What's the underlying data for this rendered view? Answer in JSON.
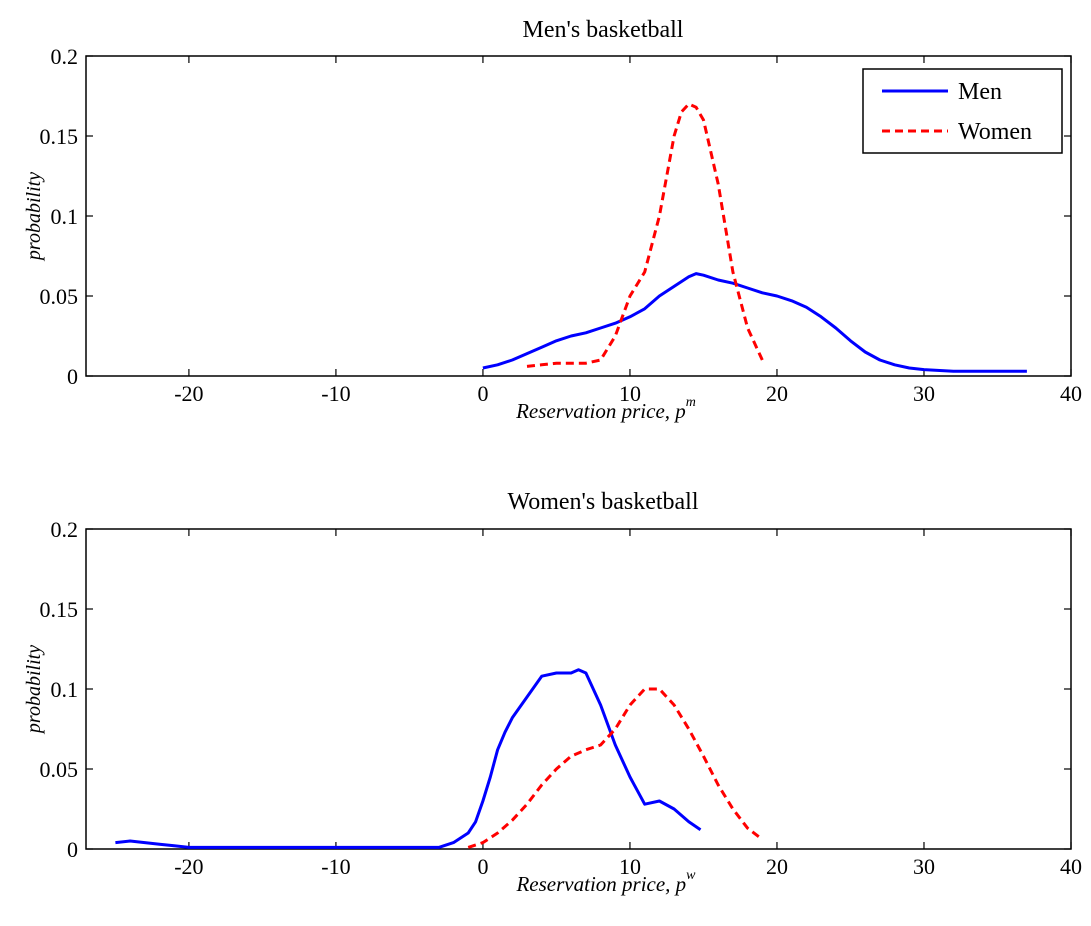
{
  "chart_data": [
    {
      "type": "line",
      "title": "Men's basketball",
      "xlabel": "Reservation price, p",
      "xlabel_sup": "m",
      "ylabel": "probability",
      "xlim": [
        -27,
        40
      ],
      "ylim": [
        0,
        0.2
      ],
      "xticks": [
        -20,
        -10,
        0,
        10,
        20,
        30,
        40
      ],
      "yticks": [
        0,
        0.05,
        0.1,
        0.15,
        0.2
      ],
      "xtick_labels": [
        "-20",
        "-10",
        "0",
        "10",
        "20",
        "30",
        "40"
      ],
      "ytick_labels": [
        "0",
        "0.05",
        "0.1",
        "0.15",
        "0.2"
      ],
      "grid": false,
      "legend": {
        "position": "top-right",
        "entries": [
          {
            "name": "Men",
            "color": "#0000ff",
            "style": "solid"
          },
          {
            "name": "Women",
            "color": "#ff0000",
            "style": "dashed"
          }
        ]
      },
      "series": [
        {
          "name": "Men",
          "color": "#0000ff",
          "style": "solid",
          "x": [
            0,
            1,
            2,
            3,
            4,
            5,
            6,
            7,
            8,
            9,
            10,
            11,
            12,
            13,
            14,
            14.5,
            15,
            16,
            17,
            18,
            19,
            20,
            21,
            22,
            23,
            24,
            25,
            26,
            27,
            28,
            29,
            30,
            32,
            35,
            37
          ],
          "y": [
            0.005,
            0.007,
            0.01,
            0.014,
            0.018,
            0.022,
            0.025,
            0.027,
            0.03,
            0.033,
            0.037,
            0.042,
            0.05,
            0.056,
            0.062,
            0.064,
            0.063,
            0.06,
            0.058,
            0.055,
            0.052,
            0.05,
            0.047,
            0.043,
            0.037,
            0.03,
            0.022,
            0.015,
            0.01,
            0.007,
            0.005,
            0.004,
            0.003,
            0.003,
            0.003
          ]
        },
        {
          "name": "Women",
          "color": "#ff0000",
          "style": "dashed",
          "x": [
            3,
            4,
            5,
            6,
            7,
            8,
            9,
            10,
            11,
            12,
            13,
            13.5,
            14,
            14.5,
            15,
            16,
            17,
            18,
            19
          ],
          "y": [
            0.006,
            0.007,
            0.008,
            0.008,
            0.008,
            0.01,
            0.025,
            0.05,
            0.065,
            0.1,
            0.15,
            0.165,
            0.17,
            0.168,
            0.16,
            0.12,
            0.065,
            0.03,
            0.01
          ]
        }
      ]
    },
    {
      "type": "line",
      "title": "Women's basketball",
      "xlabel": "Reservation price, p",
      "xlabel_sup": "w",
      "ylabel": "probability",
      "xlim": [
        -27,
        40
      ],
      "ylim": [
        0,
        0.2
      ],
      "xticks": [
        -20,
        -10,
        0,
        10,
        20,
        30,
        40
      ],
      "yticks": [
        0,
        0.05,
        0.1,
        0.15,
        0.2
      ],
      "xtick_labels": [
        "-20",
        "-10",
        "0",
        "10",
        "20",
        "30",
        "40"
      ],
      "ytick_labels": [
        "0",
        "0.05",
        "0.1",
        "0.15",
        "0.2"
      ],
      "grid": false,
      "series": [
        {
          "name": "Men",
          "color": "#0000ff",
          "style": "solid",
          "x": [
            -25,
            -24,
            -23,
            -22,
            -21,
            -20,
            -15,
            -10,
            -5,
            -3,
            -2,
            -1,
            -0.5,
            0,
            0.5,
            1,
            1.5,
            2,
            3,
            4,
            5,
            6,
            6.5,
            7,
            8,
            9,
            10,
            11,
            12,
            13,
            14,
            14.8
          ],
          "y": [
            0.004,
            0.005,
            0.004,
            0.003,
            0.002,
            0.001,
            0.001,
            0.001,
            0.001,
            0.001,
            0.004,
            0.01,
            0.017,
            0.03,
            0.045,
            0.062,
            0.073,
            0.082,
            0.095,
            0.108,
            0.11,
            0.11,
            0.112,
            0.11,
            0.09,
            0.065,
            0.045,
            0.028,
            0.03,
            0.025,
            0.017,
            0.012
          ]
        },
        {
          "name": "Women",
          "color": "#ff0000",
          "style": "dashed",
          "x": [
            -1,
            0,
            1,
            2,
            3,
            4,
            5,
            6,
            7,
            8,
            9,
            10,
            11,
            12,
            13,
            14,
            15,
            16,
            17,
            18,
            19
          ],
          "y": [
            0.001,
            0.004,
            0.01,
            0.018,
            0.028,
            0.04,
            0.05,
            0.058,
            0.062,
            0.065,
            0.075,
            0.09,
            0.1,
            0.1,
            0.09,
            0.075,
            0.058,
            0.04,
            0.025,
            0.013,
            0.006
          ]
        }
      ]
    }
  ]
}
